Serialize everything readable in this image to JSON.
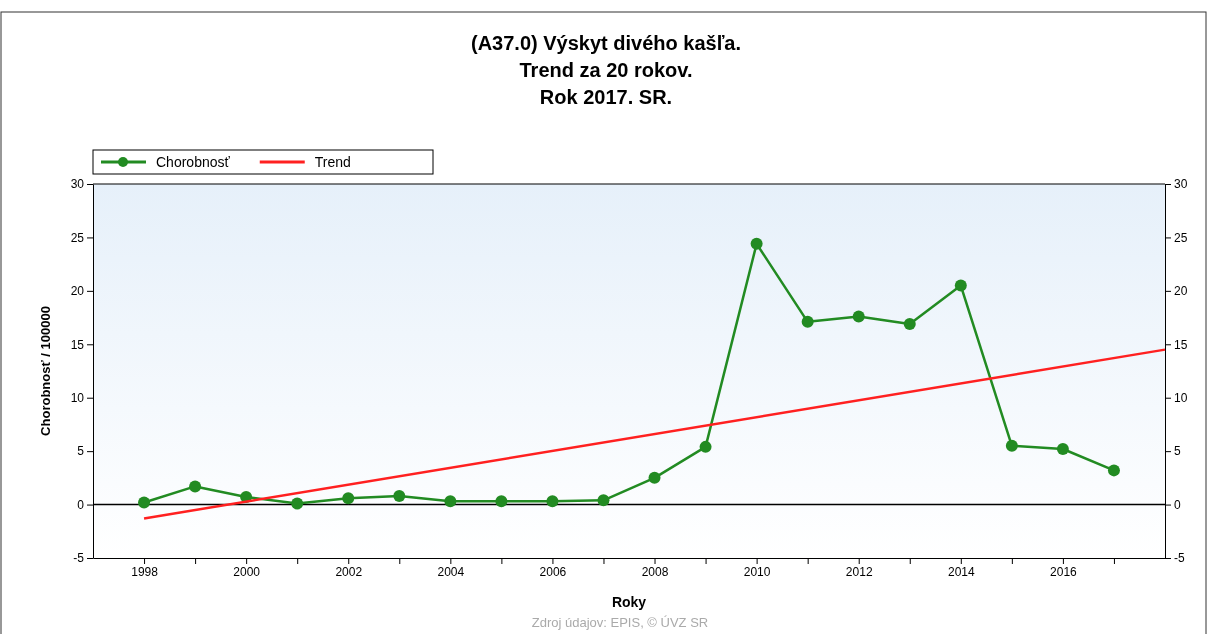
{
  "chart_data": {
    "type": "line",
    "title": "(A37.0) Výskyt divého kašľa.\nTrend za 20 rokov.\nRok 2017. SR.",
    "xlabel": "Roky",
    "ylabel": "Chorobnosť / 100000",
    "x": [
      1998,
      1999,
      2000,
      2001,
      2002,
      2003,
      2004,
      2005,
      2006,
      2007,
      2008,
      2009,
      2010,
      2011,
      2012,
      2013,
      2014,
      2015,
      2016,
      2017
    ],
    "series": [
      {
        "name": "Chorobnosť",
        "color": "#228b22",
        "marker": "circle",
        "values": [
          0.2,
          1.7,
          0.7,
          0.1,
          0.6,
          0.8,
          0.3,
          0.3,
          0.3,
          0.4,
          2.5,
          5.4,
          24.4,
          17.1,
          17.6,
          16.9,
          20.5,
          5.5,
          5.2,
          3.2
        ]
      },
      {
        "name": "Trend",
        "color": "#ff2020",
        "marker": "none",
        "x": [
          1998,
          2018
        ],
        "values": [
          -1.3,
          14.5
        ]
      }
    ],
    "xlim": [
      1997,
      2018
    ],
    "xticks": [
      1998,
      {
        "value": 1999,
        "label": null
      },
      2000,
      {
        "value": 2001,
        "label": null
      },
      2002,
      {
        "value": 2003,
        "label": null
      },
      2004,
      {
        "value": 2005,
        "label": null
      },
      2006,
      {
        "value": 2007,
        "label": null
      },
      2008,
      {
        "value": 2009,
        "label": null
      },
      2010,
      {
        "value": 2011,
        "label": null
      },
      2012,
      {
        "value": 2013,
        "label": null
      },
      2014,
      {
        "value": 2015,
        "label": null
      },
      2016,
      {
        "value": 2017,
        "label": null
      }
    ],
    "ylim": [
      -5,
      30
    ],
    "yticks": [
      -5,
      0,
      5,
      10,
      15,
      20,
      25,
      30
    ],
    "y2lim": [
      -5,
      30
    ],
    "y2ticks": [
      -5,
      0,
      5,
      10,
      15,
      20,
      25,
      30
    ],
    "ref_lines": [
      {
        "axis": "y",
        "value": 0,
        "color": "#000000"
      }
    ],
    "legend": "top left",
    "grid": false,
    "annotations": [
      "Zdroj údajov: EPIS, © ÚVZ SR"
    ]
  }
}
